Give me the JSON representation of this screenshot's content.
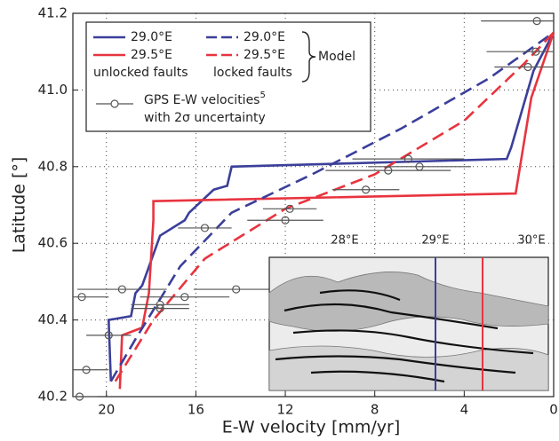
{
  "chart_data": {
    "type": "line",
    "xlabel": "E-W velocity [mm/yr]",
    "ylabel": "Latitude [°]",
    "xlim": [
      21.5,
      0
    ],
    "ylim": [
      40.2,
      41.2
    ],
    "xticks": [
      20,
      16,
      12,
      8,
      4,
      0
    ],
    "yticks": [
      40.2,
      40.4,
      40.6,
      40.8,
      {
        "value": 41,
        "label": "41.0"
      },
      41.2
    ],
    "grid": true,
    "series": [
      {
        "name": "29.0°E",
        "color": "#3b3f9a",
        "dash": false,
        "x": [
          19.8,
          19.9,
          18.9,
          18.7,
          18.4,
          17.6,
          16.5,
          16.3,
          15.2,
          14.6,
          14.4,
          2.1,
          1.9,
          0.9,
          0
        ],
        "values": [
          40.24,
          40.4,
          40.41,
          40.47,
          40.49,
          40.62,
          40.66,
          40.68,
          40.74,
          40.75,
          40.8,
          40.82,
          40.85,
          41.05,
          41.15
        ]
      },
      {
        "name": "29.5°E",
        "color": "#e8343f",
        "dash": false,
        "x": [
          19.4,
          19.3,
          18.4,
          18.1,
          17.9,
          17.9,
          1.7,
          1.0,
          0
        ],
        "values": [
          40.22,
          40.36,
          40.38,
          40.47,
          40.66,
          40.71,
          40.73,
          40.98,
          41.15
        ]
      },
      {
        "name": "29.0°E",
        "color": "#3b3f9a",
        "dash": true,
        "x": [
          19.8,
          18.7,
          16.7,
          14.4,
          10.8,
          6.8,
          2.9,
          0
        ],
        "values": [
          40.24,
          40.35,
          40.54,
          40.68,
          40.78,
          40.9,
          41.03,
          41.15
        ]
      },
      {
        "name": "29.5°E",
        "color": "#e8343f",
        "dash": true,
        "x": [
          19.6,
          17.9,
          15.6,
          12.0,
          8.0,
          4.0,
          1.3,
          0
        ],
        "values": [
          40.24,
          40.4,
          40.56,
          40.69,
          40.78,
          40.92,
          41.07,
          41.15
        ]
      }
    ],
    "gps": {
      "name": "GPS E-W velocities",
      "name_ref": "5",
      "name_line2": "with 2σ uncertainty",
      "color": "#555555",
      "x": [
        0.75,
        0.8,
        1.15,
        6.5,
        6.0,
        7.4,
        8.4,
        11.8,
        12.0,
        15.6,
        19.3,
        21.1,
        16.5,
        17.6,
        17.6,
        14.2,
        19.9,
        20.9,
        21.2
      ],
      "values": [
        41.18,
        41.1,
        41.06,
        40.82,
        40.8,
        40.79,
        40.74,
        40.69,
        40.66,
        40.64,
        40.48,
        40.46,
        40.46,
        40.44,
        40.43,
        40.48,
        40.36,
        40.27,
        40.2
      ],
      "x_err": [
        2.5,
        2.2,
        1.5,
        2.5,
        2.3,
        2.8,
        1.5,
        1.2,
        1.7,
        1.2,
        2.0,
        1.2,
        2.0,
        1.3,
        1.3,
        1.9,
        1.0,
        1.0,
        0.8
      ]
    },
    "legend": {
      "unlocked": "unlocked faults",
      "locked": "locked faults",
      "model": "Model"
    },
    "inset": {
      "xtick_labels": [
        "28°E",
        "29°E",
        "30°E"
      ]
    }
  }
}
